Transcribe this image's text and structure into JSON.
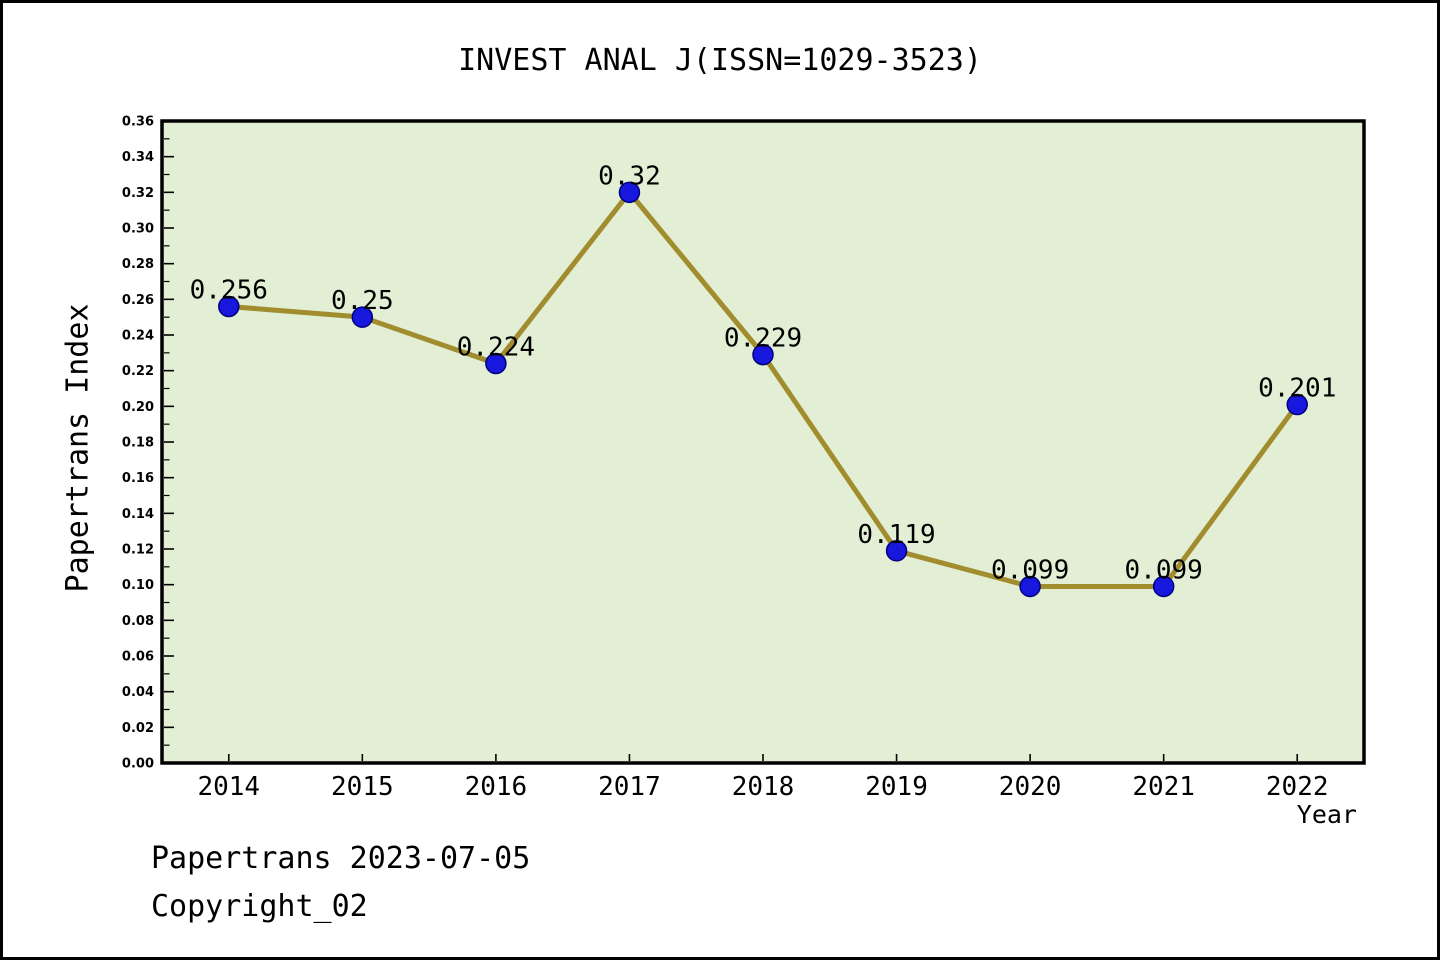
{
  "title": "INVEST ANAL J(ISSN=1029-3523)",
  "footer": {
    "line1": "Papertrans 2023-07-05",
    "line2": "Copyright_02"
  },
  "chart_data": {
    "type": "line",
    "title": "INVEST ANAL J(ISSN=1029-3523)",
    "xlabel": "Year",
    "ylabel": "Papertrans Index",
    "categories": [
      "2014",
      "2015",
      "2016",
      "2017",
      "2018",
      "2019",
      "2020",
      "2021",
      "2022"
    ],
    "values": [
      0.256,
      0.25,
      0.224,
      0.32,
      0.229,
      0.119,
      0.099,
      0.099,
      0.201
    ],
    "point_labels": [
      "0.256",
      "0.25",
      "0.224",
      "0.32",
      "0.229",
      "0.119",
      "0.099",
      "0.099",
      "0.201"
    ],
    "ylim": [
      0.0,
      0.36
    ],
    "y_major_step": 0.02,
    "y_minor_step": 0.01,
    "grid": false,
    "legend": null,
    "styles": {
      "plot_bg": "#e3efd4",
      "line_color": "#a18c2e",
      "marker_color": "#1717dd",
      "marker_edge": "#000080",
      "axis_color": "#000000",
      "outer_bg": "#ffffff"
    }
  }
}
